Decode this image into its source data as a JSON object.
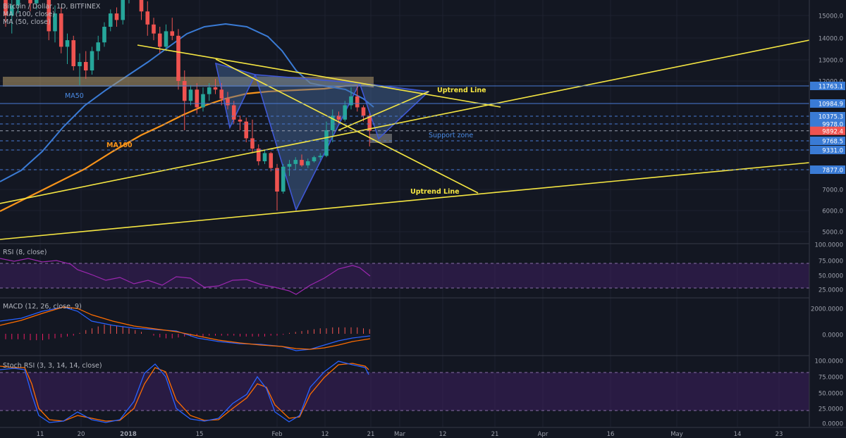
{
  "header": {
    "symbol": "Bitcoin / Dollar, 1D, BITFINEX",
    "ma100_label": "MA (100, close)",
    "ma50_label": "MA (50, close)"
  },
  "panes": {
    "rsi_label": "RSI (8, close)",
    "macd_label": "MACD (12, 26, close, 9)",
    "stoch_label": "Stoch RSI (3, 3, 14, 14, close)"
  },
  "annotations": {
    "ma50": "MA50",
    "ma100": "MA100",
    "uptrend_upper": "Uptrend Line",
    "uptrend_lower": "Uptrend Line",
    "support": "Support zone"
  },
  "colors": {
    "background": "#131722",
    "up": "#26a69a",
    "down": "#ef5350",
    "ma50": "#3a7bd5",
    "ma100": "#f7931a",
    "trendline": "#f5e642",
    "pattern_fill": "#4a6fa5",
    "rsi": "#9c27b0",
    "macd": "#2962ff",
    "signal": "#ff6d00",
    "stoch_k": "#2962ff",
    "stoch_d": "#ff6d00",
    "price_tag": "#3a7bd5",
    "last_price_tag": "#ef5350"
  },
  "chart_data": {
    "type": "candlestick",
    "x_ticks": [
      "11",
      "20",
      "2018",
      "15",
      "Feb",
      "12",
      "21",
      "Mar",
      "12",
      "21",
      "Apr",
      "16",
      "May",
      "14",
      "23"
    ],
    "price_axis_ticks": [
      "15000.0",
      "14000.0",
      "13000.0",
      "12000.0",
      "7000.0",
      "6000.0",
      "5000.0"
    ],
    "price_levels": [
      {
        "label": "11763.1",
        "value": 11763.1,
        "style": "solid"
      },
      {
        "label": "10984.9",
        "value": 10984.9,
        "style": "solid"
      },
      {
        "label": "10375.3",
        "value": 10375.3,
        "style": "dashed"
      },
      {
        "label": "9978.0",
        "value": 9978.0,
        "style": "dashed"
      },
      {
        "label": "9892.4",
        "value": 9892.4,
        "style": "last"
      },
      {
        "label": "9768.5",
        "value": 9768.5,
        "style": "dashed"
      },
      {
        "label": "9331.0",
        "value": 9331.0,
        "style": "dashed"
      },
      {
        "label": "7877.0",
        "value": 7877.0,
        "style": "dashed"
      }
    ],
    "rsi_ticks": [
      "100.0000",
      "75.0000",
      "50.0000",
      "25.0000"
    ],
    "macd_ticks": [
      "2000.0000",
      "0.0000"
    ],
    "stoch_ticks": [
      "100.0000",
      "75.0000",
      "50.0000",
      "25.0000",
      "0.0000"
    ],
    "candles": [
      [
        16000,
        16600,
        14500,
        15000
      ],
      [
        15000,
        15800,
        14200,
        15500
      ],
      [
        15500,
        16900,
        15100,
        16600
      ],
      [
        16600,
        17200,
        15900,
        16300
      ],
      [
        16300,
        16700,
        15200,
        15600
      ],
      [
        15600,
        17100,
        15300,
        16900
      ],
      [
        16900,
        17400,
        16200,
        16500
      ],
      [
        16500,
        16800,
        13900,
        14300
      ],
      [
        14300,
        15500,
        13800,
        15100
      ],
      [
        15100,
        15400,
        13300,
        13600
      ],
      [
        13600,
        14200,
        12800,
        13900
      ],
      [
        13900,
        14100,
        12500,
        12700
      ],
      [
        12700,
        13300,
        11800,
        12900
      ],
      [
        12900,
        13400,
        12100,
        12500
      ],
      [
        12500,
        13600,
        12300,
        13400
      ],
      [
        13400,
        14100,
        13000,
        13800
      ],
      [
        13800,
        14700,
        13600,
        14500
      ],
      [
        14500,
        15300,
        14300,
        15100
      ],
      [
        15100,
        15400,
        14500,
        14800
      ],
      [
        14800,
        16100,
        14600,
        15800
      ],
      [
        15800,
        17200,
        15600,
        16900
      ],
      [
        16900,
        17300,
        16300,
        16800
      ],
      [
        16800,
        17200,
        14800,
        15200
      ],
      [
        15200,
        15700,
        14100,
        14600
      ],
      [
        14600,
        14900,
        13900,
        14200
      ],
      [
        14200,
        14500,
        13300,
        13600
      ],
      [
        13600,
        14600,
        13400,
        14300
      ],
      [
        14300,
        14900,
        13900,
        14100
      ],
      [
        14100,
        14400,
        11600,
        12000
      ],
      [
        12000,
        12500,
        9900,
        11100
      ],
      [
        11100,
        11800,
        10900,
        11600
      ],
      [
        11600,
        11900,
        10500,
        10800
      ],
      [
        10800,
        11700,
        10600,
        11400
      ],
      [
        11400,
        11900,
        11100,
        11700
      ],
      [
        11700,
        12100,
        11400,
        11600
      ],
      [
        11600,
        11900,
        10900,
        11200
      ],
      [
        11200,
        11500,
        10700,
        10900
      ],
      [
        10900,
        11100,
        10000,
        10200
      ],
      [
        10200,
        10400,
        9900,
        10100
      ],
      [
        10100,
        10300,
        9700,
        9800
      ],
      [
        9800,
        10200,
        9100,
        9400
      ],
      [
        9400,
        9600,
        8200,
        8500
      ],
      [
        8500,
        9300,
        8300,
        9100
      ],
      [
        9100,
        9200,
        7800,
        8000
      ],
      [
        8000,
        8300,
        6000,
        6900
      ],
      [
        6900,
        8300,
        6800,
        8100
      ],
      [
        8100,
        8600,
        7600,
        8300
      ],
      [
        8300,
        8800,
        7900,
        8600
      ],
      [
        8600,
        9000,
        8100,
        8200
      ],
      [
        8200,
        8700,
        8000,
        8500
      ],
      [
        8500,
        8900,
        8400,
        8800
      ],
      [
        8800,
        9100,
        8600,
        8900
      ],
      [
        8900,
        10100,
        8800,
        9900
      ],
      [
        9900,
        10700,
        9700,
        10400
      ],
      [
        10400,
        10600,
        10000,
        10200
      ],
      [
        10200,
        11100,
        10100,
        10900
      ],
      [
        10900,
        11700,
        10700,
        11300
      ],
      [
        11300,
        11800,
        10600,
        10800
      ],
      [
        10800,
        10900,
        10100,
        10400
      ],
      [
        10400,
        10500,
        9500,
        9892
      ]
    ],
    "trendlines": [
      {
        "name": "uptrend_upper",
        "points": [
          [
            "2017-12-07",
            6400
          ],
          [
            "2018-03-31",
            13950
          ]
        ]
      },
      {
        "name": "uptrend_lower",
        "points": [
          [
            "2017-12-07",
            5000
          ],
          [
            "2018-05-25",
            8200
          ]
        ]
      },
      {
        "name": "descending_resistance",
        "points": [
          [
            "2018-01-02",
            14000
          ],
          [
            "2018-03-07",
            10700
          ]
        ]
      },
      {
        "name": "descending_2",
        "points": [
          [
            "2018-01-16",
            13000
          ],
          [
            "2018-03-07",
            7000
          ]
        ]
      }
    ],
    "rsi_range": [
      0,
      100
    ],
    "stoch_range": [
      0,
      100
    ]
  }
}
